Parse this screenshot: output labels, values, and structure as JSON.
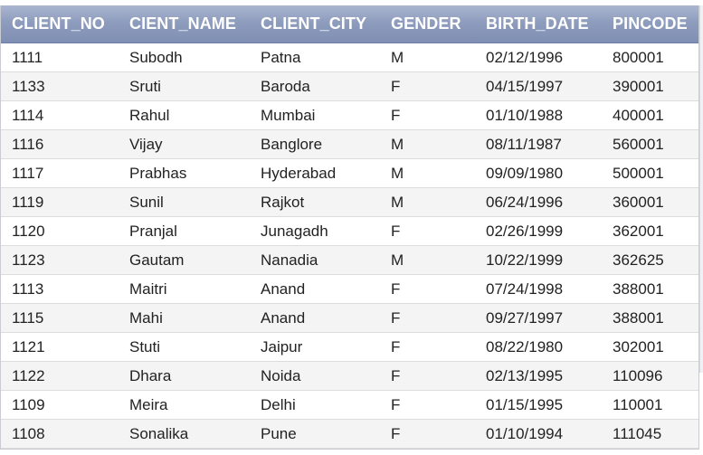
{
  "table": {
    "columns": [
      "CLIENT_NO",
      "CIENT_NAME",
      "CLIENT_CITY",
      "GENDER",
      "BIRTH_DATE",
      "PINCODE"
    ],
    "rows": [
      [
        "1111",
        "Subodh",
        "Patna",
        "M",
        "02/12/1996",
        "800001"
      ],
      [
        "1133",
        "Sruti",
        "Baroda",
        "F",
        "04/15/1997",
        "390001"
      ],
      [
        "1114",
        "Rahul",
        "Mumbai",
        "F",
        "01/10/1988",
        "400001"
      ],
      [
        "1116",
        "Vijay",
        "Banglore",
        "M",
        "08/11/1987",
        "560001"
      ],
      [
        "1117",
        "Prabhas",
        "Hyderabad",
        "M",
        "09/09/1980",
        "500001"
      ],
      [
        "1119",
        "Sunil",
        "Rajkot",
        "M",
        "06/24/1996",
        "360001"
      ],
      [
        "1120",
        "Pranjal",
        "Junagadh",
        "F",
        "02/26/1999",
        "362001"
      ],
      [
        "1123",
        "Gautam",
        "Nanadia",
        "M",
        "10/22/1999",
        "362625"
      ],
      [
        "1113",
        "Maitri",
        "Anand",
        "F",
        "07/24/1998",
        "388001"
      ],
      [
        "1115",
        "Mahi",
        "Anand",
        "F",
        "09/27/1997",
        "388001"
      ],
      [
        "1121",
        "Stuti",
        "Jaipur",
        "F",
        "08/22/1980",
        "302001"
      ],
      [
        "1122",
        "Dhara",
        "Noida",
        "F",
        "02/13/1995",
        "110096"
      ],
      [
        "1109",
        "Meira",
        "Delhi",
        "F",
        "01/15/1995",
        "110001"
      ],
      [
        "1108",
        "Sonalika",
        "Pune",
        "F",
        "01/10/1994",
        "111045"
      ]
    ]
  },
  "colors": {
    "header_text": "#ffffff",
    "header_bg": "#8e9cbd",
    "row_alt_bg": "#f4f4f4",
    "cell_text": "#222222"
  }
}
